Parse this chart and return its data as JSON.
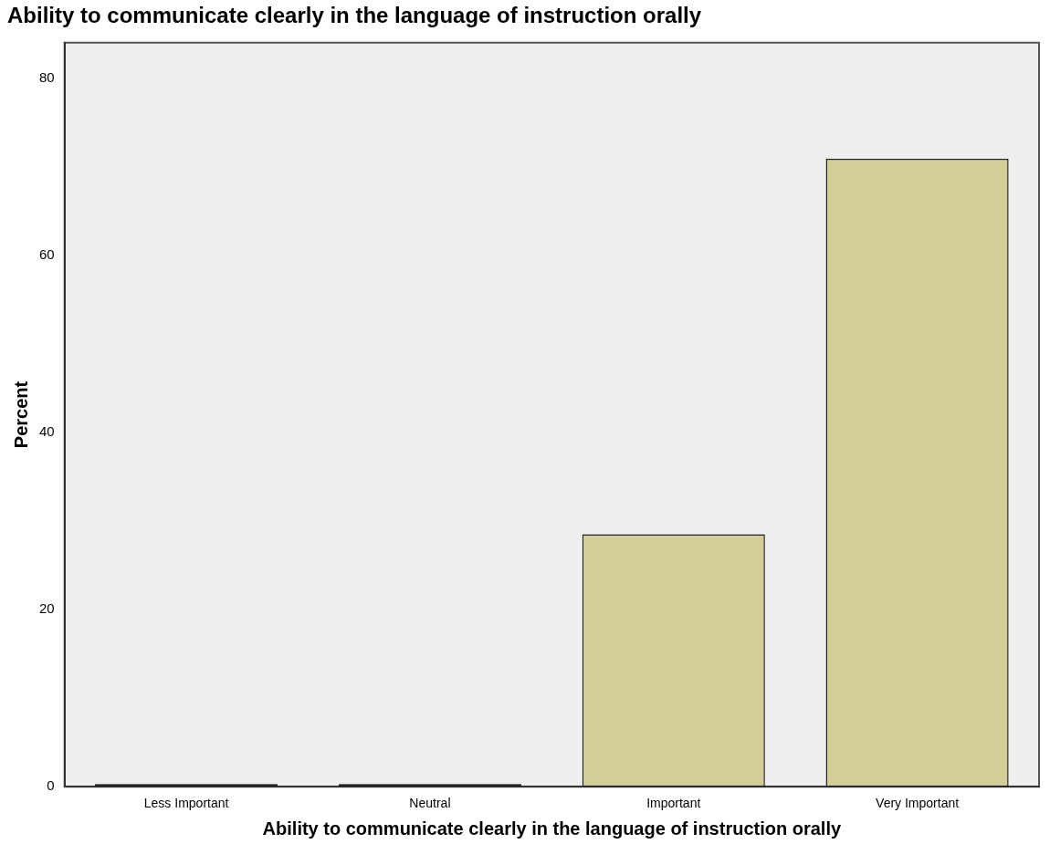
{
  "chart_data": {
    "type": "bar",
    "title": "Ability to communicate clearly in the language of instruction orally",
    "xlabel": "Ability to communicate clearly in the language of instruction orally",
    "ylabel": "Percent",
    "categories": [
      "Less Important",
      "Neutral",
      "Important",
      "Very Important"
    ],
    "values": [
      0.3,
      0.3,
      28.5,
      70.9
    ],
    "colors": [
      "#222222",
      "#222222",
      "#d3ce97",
      "#d3ce97"
    ],
    "ylim": [
      0,
      84
    ],
    "yticks": [
      0,
      20,
      40,
      60,
      80
    ],
    "grid": false,
    "legend": false
  }
}
